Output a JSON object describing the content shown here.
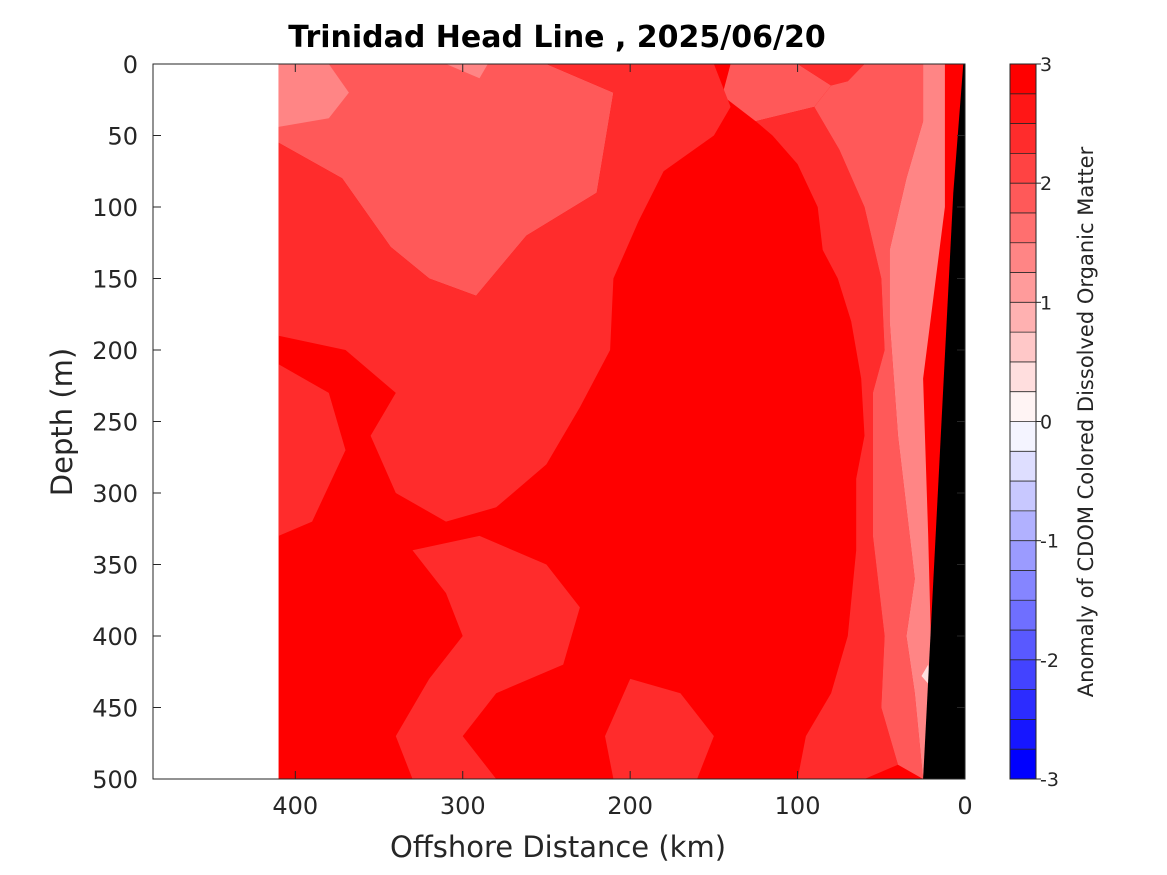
{
  "chart_data": {
    "type": "heatmap",
    "title": "Trinidad Head Line , 2025/06/20",
    "xlabel": "Offshore Distance (km)",
    "ylabel": "Depth (m)",
    "colorbar_label": "Anomaly of CDOM Colored Dissolved Organic Matter",
    "x_reversed": true,
    "y_reversed": true,
    "xlim": [
      485,
      0
    ],
    "ylim": [
      500,
      0
    ],
    "x_ticks": [
      400,
      300,
      200,
      100,
      0
    ],
    "x_tick_labels": [
      "400",
      "300",
      "200",
      "100",
      "0"
    ],
    "y_ticks": [
      0,
      50,
      100,
      150,
      200,
      250,
      300,
      350,
      400,
      450,
      500
    ],
    "y_tick_labels": [
      "0",
      "50",
      "100",
      "150",
      "200",
      "250",
      "300",
      "350",
      "400",
      "450",
      "500"
    ],
    "colorbar_range": [
      -3,
      3
    ],
    "colorbar_ticks": [
      3,
      2,
      1,
      0,
      -1,
      -2,
      -3
    ],
    "colorbar_tick_labels": [
      "3",
      "2",
      "1",
      "0",
      "-1",
      "-2",
      "-3"
    ],
    "colorbar_levels": 24,
    "data_extent_km": 410,
    "bathymetry_color": "#000000",
    "colors": {
      "positive": "#ff0000",
      "negative": "#0000ff",
      "neutral": "#ffffff"
    },
    "regions": [
      {
        "level": 1.75,
        "polygon": [
          [
            410,
            0
          ],
          [
            250,
            0
          ],
          [
            210,
            20
          ],
          [
            220,
            90
          ],
          [
            262,
            120
          ],
          [
            282,
            148
          ],
          [
            292,
            162
          ],
          [
            320,
            150
          ],
          [
            343,
            128
          ],
          [
            372,
            80
          ],
          [
            410,
            55
          ]
        ]
      },
      {
        "level": 1.25,
        "polygon": [
          [
            410,
            0
          ],
          [
            380,
            0
          ],
          [
            368,
            20
          ],
          [
            380,
            38
          ],
          [
            410,
            44
          ]
        ]
      },
      {
        "level": 1.25,
        "polygon": [
          [
            310,
            0
          ],
          [
            285,
            0
          ],
          [
            290,
            10
          ]
        ]
      },
      {
        "level": 1.75,
        "polygon": [
          [
            140,
            0
          ],
          [
            100,
            0
          ],
          [
            80,
            15
          ],
          [
            90,
            30
          ],
          [
            125,
            40
          ],
          [
            145,
            22
          ]
        ]
      },
      {
        "level": 2.25,
        "polygon": [
          [
            410,
            55
          ],
          [
            372,
            80
          ],
          [
            343,
            128
          ],
          [
            320,
            150
          ],
          [
            292,
            162
          ],
          [
            282,
            148
          ],
          [
            262,
            120
          ],
          [
            220,
            90
          ],
          [
            210,
            20
          ],
          [
            250,
            0
          ],
          [
            150,
            0
          ],
          [
            140,
            30
          ],
          [
            150,
            50
          ],
          [
            180,
            75
          ],
          [
            195,
            110
          ],
          [
            210,
            150
          ],
          [
            212,
            200
          ],
          [
            230,
            240
          ],
          [
            250,
            280
          ],
          [
            280,
            310
          ],
          [
            310,
            320
          ],
          [
            340,
            300
          ],
          [
            355,
            260
          ],
          [
            340,
            230
          ],
          [
            370,
            200
          ],
          [
            410,
            190
          ]
        ]
      },
      {
        "level": 2.25,
        "polygon": [
          [
            100,
            0
          ],
          [
            60,
            0
          ],
          [
            70,
            12
          ],
          [
            80,
            15
          ]
        ]
      },
      {
        "level": 2.25,
        "polygon": [
          [
            90,
            30
          ],
          [
            75,
            60
          ],
          [
            60,
            100
          ],
          [
            50,
            150
          ],
          [
            48,
            200
          ],
          [
            55,
            230
          ],
          [
            55,
            280
          ],
          [
            55,
            330
          ],
          [
            48,
            400
          ],
          [
            50,
            450
          ],
          [
            40,
            490
          ],
          [
            60,
            500
          ],
          [
            100,
            500
          ],
          [
            95,
            470
          ],
          [
            80,
            440
          ],
          [
            70,
            400
          ],
          [
            65,
            340
          ],
          [
            65,
            290
          ],
          [
            60,
            260
          ],
          [
            62,
            220
          ],
          [
            68,
            180
          ],
          [
            76,
            150
          ],
          [
            85,
            130
          ],
          [
            88,
            100
          ],
          [
            100,
            70
          ],
          [
            115,
            50
          ],
          [
            125,
            40
          ]
        ]
      },
      {
        "level": 1.75,
        "polygon": [
          [
            60,
            0
          ],
          [
            25,
            0
          ],
          [
            25,
            40
          ],
          [
            35,
            80
          ],
          [
            45,
            130
          ],
          [
            45,
            180
          ],
          [
            40,
            260
          ],
          [
            35,
            310
          ],
          [
            30,
            360
          ],
          [
            35,
            400
          ],
          [
            30,
            440
          ],
          [
            25,
            500
          ],
          [
            40,
            490
          ],
          [
            50,
            450
          ],
          [
            48,
            400
          ],
          [
            55,
            330
          ],
          [
            55,
            280
          ],
          [
            55,
            230
          ],
          [
            48,
            200
          ],
          [
            50,
            150
          ],
          [
            60,
            100
          ],
          [
            75,
            60
          ],
          [
            90,
            30
          ],
          [
            80,
            15
          ],
          [
            70,
            12
          ]
        ]
      },
      {
        "level": 1.25,
        "polygon": [
          [
            25,
            0
          ],
          [
            12,
            0
          ],
          [
            12,
            100
          ],
          [
            25,
            220
          ],
          [
            22,
            330
          ],
          [
            20,
            420
          ],
          [
            25,
            500
          ],
          [
            30,
            440
          ],
          [
            35,
            400
          ],
          [
            30,
            360
          ],
          [
            35,
            310
          ],
          [
            40,
            260
          ],
          [
            45,
            180
          ],
          [
            45,
            130
          ],
          [
            35,
            80
          ],
          [
            25,
            40
          ]
        ]
      },
      {
        "level": 2.25,
        "polygon": [
          [
            410,
            210
          ],
          [
            380,
            230
          ],
          [
            370,
            270
          ],
          [
            390,
            320
          ],
          [
            410,
            330
          ]
        ]
      },
      {
        "level": 2.25,
        "polygon": [
          [
            330,
            340
          ],
          [
            290,
            330
          ],
          [
            250,
            350
          ],
          [
            230,
            380
          ],
          [
            240,
            420
          ],
          [
            280,
            440
          ],
          [
            300,
            470
          ],
          [
            280,
            500
          ],
          [
            330,
            500
          ],
          [
            340,
            470
          ],
          [
            320,
            430
          ],
          [
            300,
            400
          ],
          [
            310,
            370
          ]
        ]
      },
      {
        "level": 2.25,
        "polygon": [
          [
            200,
            430
          ],
          [
            170,
            440
          ],
          [
            150,
            470
          ],
          [
            160,
            500
          ],
          [
            210,
            500
          ],
          [
            215,
            470
          ]
        ]
      },
      {
        "level": 0.25,
        "polygon": [
          [
            22,
            420
          ],
          [
            26,
            428
          ],
          [
            20,
            436
          ]
        ]
      }
    ]
  }
}
